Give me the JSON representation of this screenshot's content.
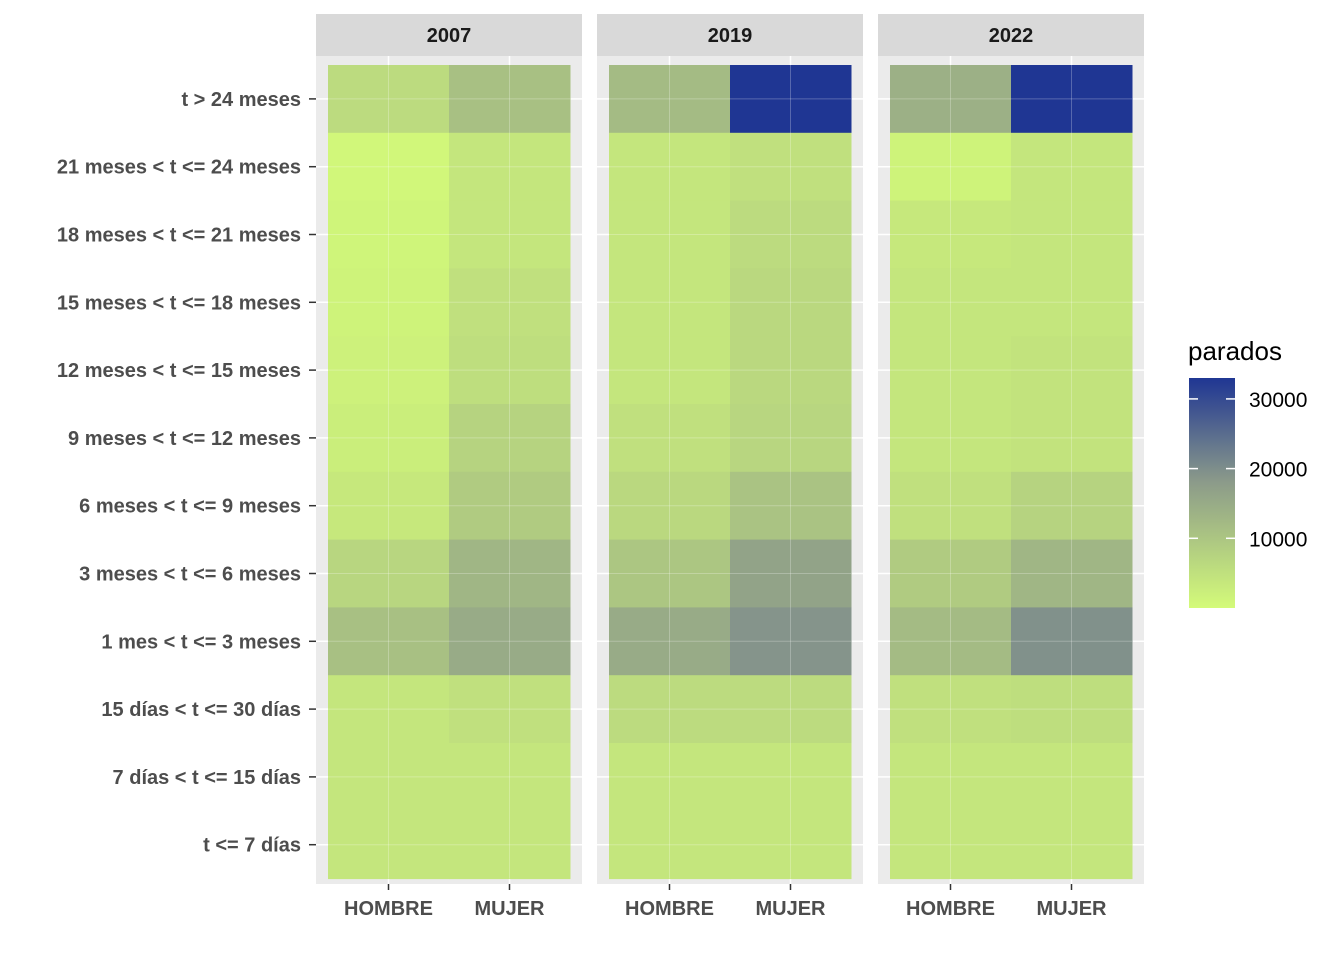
{
  "chart_data": {
    "type": "heatmap",
    "facets": [
      "2007",
      "2019",
      "2022"
    ],
    "x_categories": [
      "HOMBRE",
      "MUJER"
    ],
    "y_categories": [
      "t > 24 meses",
      "21 meses < t <= 24 meses",
      "18 meses < t <= 21 meses",
      "15 meses < t <= 18 meses",
      "12 meses < t <= 15 meses",
      "9 meses < t <= 12 meses",
      "6 meses < t <= 9 meses",
      "3 meses < t <= 6 meses",
      "1 mes < t <= 3 meses",
      "15 días < t <= 30 días",
      "7 días < t <= 15 días",
      "t <= 7 días"
    ],
    "values": {
      "2007": {
        "HOMBRE": [
          6000,
          800,
          1200,
          1500,
          1800,
          2500,
          3500,
          7000,
          11000,
          4000,
          4000,
          4000
        ],
        "MUJER": [
          11000,
          4000,
          4000,
          5000,
          5500,
          7500,
          9000,
          13000,
          15000,
          5000,
          4000,
          4000
        ]
      },
      "2019": {
        "HOMBRE": [
          12000,
          4000,
          4000,
          4000,
          4000,
          5000,
          6500,
          10000,
          15000,
          6000,
          4000,
          4000
        ],
        "MUJER": [
          33000,
          5000,
          6000,
          6500,
          6500,
          7000,
          10500,
          16500,
          19000,
          6000,
          4000,
          4000
        ]
      },
      "2022": {
        "HOMBRE": [
          14000,
          1500,
          3500,
          4000,
          4000,
          4000,
          5000,
          9000,
          12000,
          5000,
          4000,
          4000
        ],
        "MUJER": [
          33000,
          4000,
          4000,
          4000,
          4500,
          4500,
          7500,
          13000,
          19500,
          5500,
          4000,
          4000
        ]
      }
    },
    "legend": {
      "title": "parados",
      "ticks": [
        10000,
        20000,
        30000
      ],
      "tick_labels": [
        "10000",
        "20000",
        "30000"
      ],
      "min": 0,
      "max": 33000,
      "position": "right"
    },
    "colors": {
      "low": "#d4fb79",
      "mid": "#8b9a8a",
      "high": "#1f3693"
    },
    "grid": true
  }
}
